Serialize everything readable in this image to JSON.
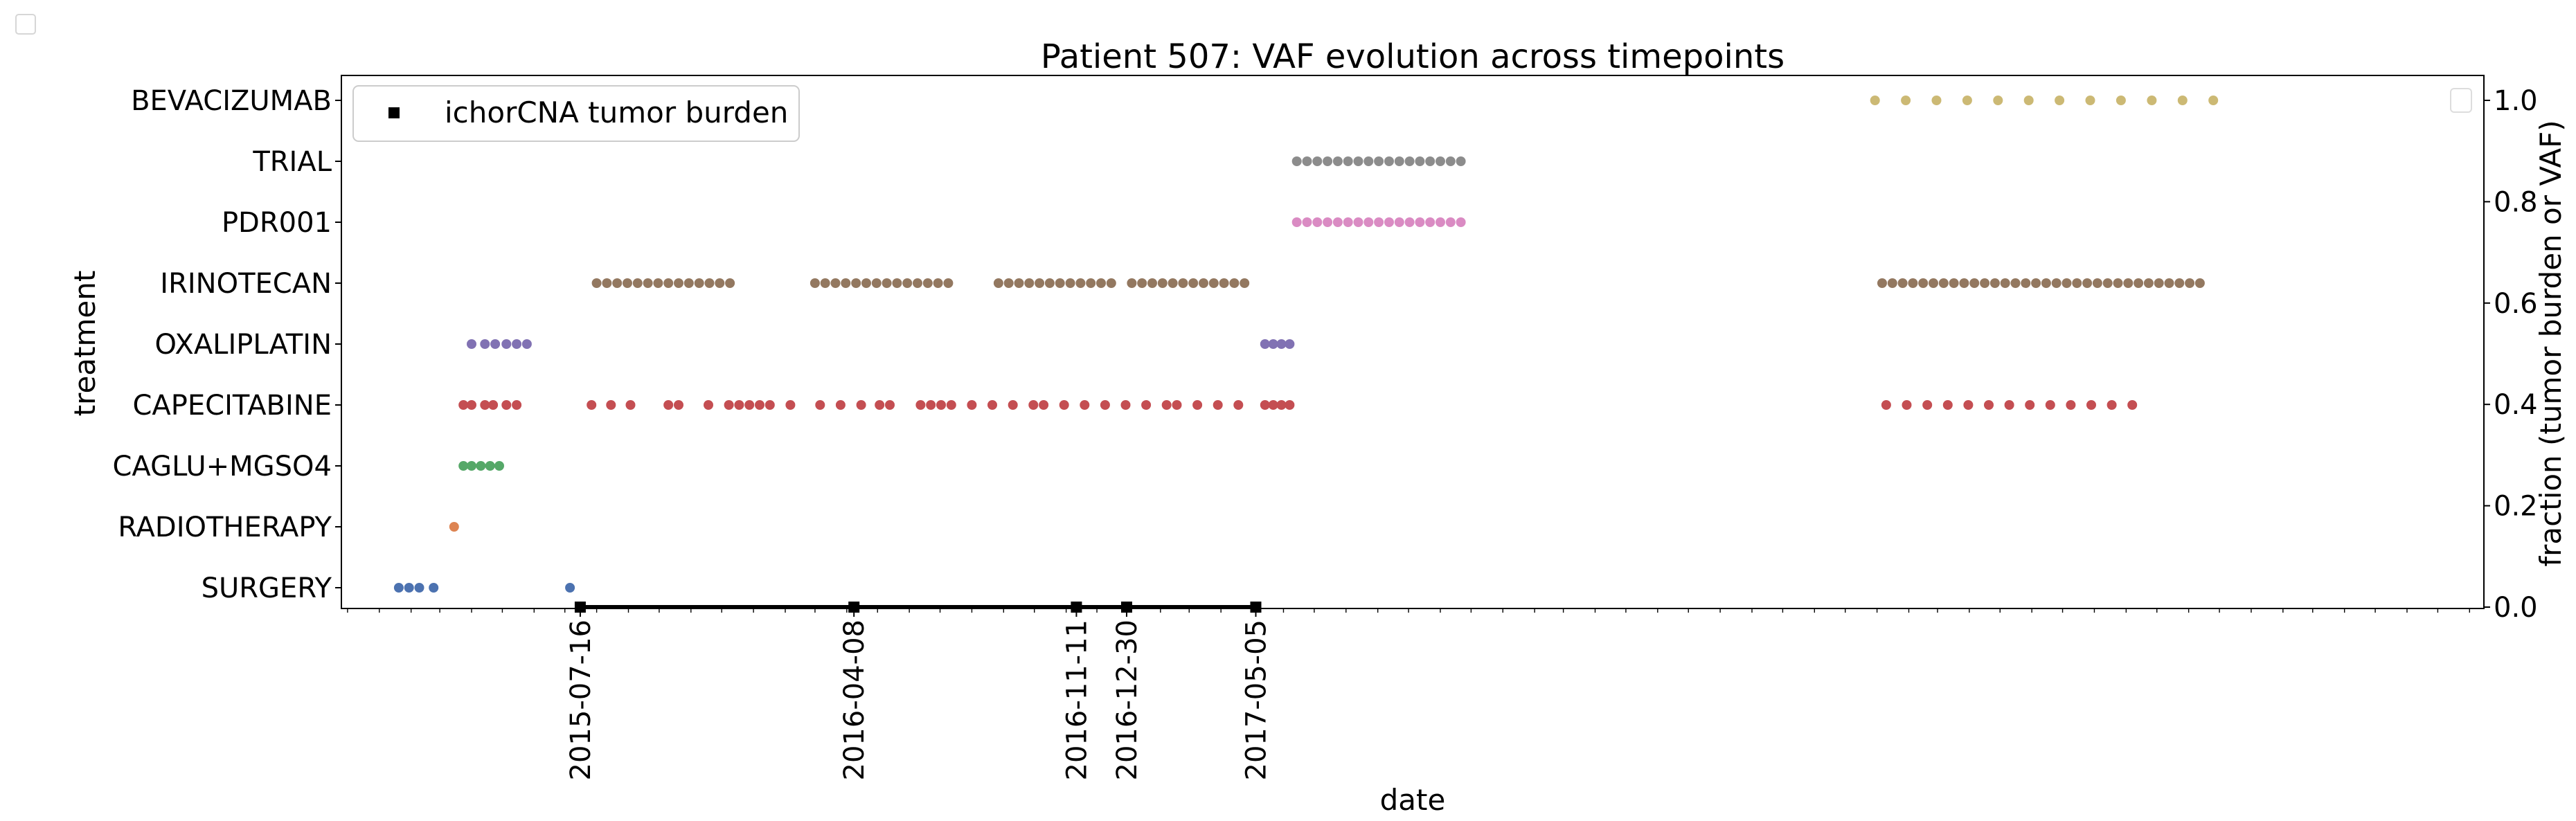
{
  "chart_data": {
    "type": "scatter",
    "title": "Patient 507: VAF evolution across timepoints",
    "xlabel": "date",
    "ylabel_left": "treatment",
    "ylabel_right": "fraction (tumor burden or VAF)",
    "right_ylim": [
      0.0,
      1.0
    ],
    "right_yticks": [
      "0.0",
      "0.2",
      "0.4",
      "0.6",
      "0.8",
      "1.0"
    ],
    "xlim": [
      "2014-11-25",
      "2020-08-15"
    ],
    "grid": false,
    "legend": {
      "position": "top-left",
      "entries": [
        "ichorCNA tumor burden"
      ]
    },
    "categories": [
      "SURGERY",
      "RADIOTHERAPY",
      "CAGLU+MGSO4",
      "CAPECITABINE",
      "OXALIPLATIN",
      "IRINOTECAN",
      "PDR001",
      "TRIAL",
      "BEVACIZUMAB"
    ],
    "colors": {
      "SURGERY": "#4c72b0",
      "RADIOTHERAPY": "#dd8452",
      "CAGLU+MGSO4": "#55a868",
      "CAPECITABINE": "#c44e52",
      "OXALIPLATIN": "#8172b3",
      "IRINOTECAN": "#937860",
      "PDR001": "#da8bc3",
      "TRIAL": "#8c8c8c",
      "BEVACIZUMAB": "#ccb974",
      "ichorCNA": "#000000"
    },
    "tumor_burden": [
      {
        "date": "2015-07-16",
        "value": 0.0
      },
      {
        "date": "2016-04-08",
        "value": 0.0
      },
      {
        "date": "2016-11-11",
        "value": 0.0
      },
      {
        "date": "2016-12-30",
        "value": 0.0
      },
      {
        "date": "2017-05-05",
        "value": 0.0
      }
    ],
    "x_tick_labels": [
      "2015-07-16",
      "2016-04-08",
      "2016-11-11",
      "2016-12-30",
      "2017-05-05"
    ],
    "treatments": [
      {
        "name": "SURGERY",
        "dates": [
          "2015-01-20",
          "2015-01-30",
          "2015-02-09",
          "2015-02-23",
          "2015-07-06"
        ]
      },
      {
        "name": "RADIOTHERAPY",
        "dates": [
          "2015-03-15"
        ]
      },
      {
        "name": "CAGLU+MGSO4",
        "dates": [
          "2015-03-24",
          "2015-04-01",
          "2015-04-10",
          "2015-04-19",
          "2015-04-28"
        ]
      },
      {
        "name": "CAPECITABINE",
        "dates": [
          "2015-03-24",
          "2015-04-01",
          "2015-04-14",
          "2015-04-22",
          "2015-05-05",
          "2015-05-15",
          "2015-07-27",
          "2015-08-15",
          "2015-09-03",
          "2015-10-10",
          "2015-10-20",
          "2015-11-18",
          "2015-12-08",
          "2015-12-18",
          "2015-12-28",
          "2016-01-07",
          "2016-01-17",
          "2016-02-06",
          "2016-03-06",
          "2016-03-26",
          "2016-04-15",
          "2016-05-03",
          "2016-05-13",
          "2016-06-12",
          "2016-06-22",
          "2016-07-02",
          "2016-07-12",
          "2016-08-01",
          "2016-08-21",
          "2016-09-10",
          "2016-09-30",
          "2016-10-10",
          "2016-10-30",
          "2016-11-19",
          "2016-12-09",
          "2016-12-29",
          "2017-01-18",
          "2017-02-07",
          "2017-02-17",
          "2017-03-09",
          "2017-03-29",
          "2017-04-18",
          "2017-05-14",
          "2017-05-22",
          "2017-05-30",
          "2017-06-07",
          "2019-01-10",
          "2019-01-30",
          "2019-02-19",
          "2019-03-11",
          "2019-03-31",
          "2019-04-20",
          "2019-05-10",
          "2019-05-30",
          "2019-06-19",
          "2019-07-09",
          "2019-07-29",
          "2019-08-18",
          "2019-09-07"
        ]
      },
      {
        "name": "OXALIPLATIN",
        "dates": [
          "2015-04-01",
          "2015-04-14",
          "2015-04-24",
          "2015-05-05",
          "2015-05-15",
          "2015-05-25"
        ]
      },
      {
        "name": "IRINOTECAN",
        "dates": [
          "2015-08-01",
          "2015-08-11",
          "2015-08-21",
          "2015-08-31",
          "2015-09-10",
          "2015-09-20",
          "2015-09-30",
          "2015-10-10",
          "2015-10-20",
          "2015-10-30",
          "2015-11-09",
          "2015-11-19",
          "2015-11-29",
          "2015-12-09",
          "2016-03-01",
          "2016-03-11",
          "2016-03-21",
          "2016-03-31",
          "2016-04-10",
          "2016-04-20",
          "2016-04-30",
          "2016-05-10",
          "2016-05-20",
          "2016-05-30",
          "2016-06-09",
          "2016-06-19",
          "2016-06-29",
          "2016-07-09",
          "2016-08-27",
          "2016-09-06",
          "2016-09-16",
          "2016-09-26",
          "2016-10-06",
          "2016-10-16",
          "2016-10-26",
          "2016-11-05",
          "2016-11-15",
          "2016-11-25",
          "2016-12-05",
          "2016-12-15",
          "2017-01-04",
          "2017-01-14",
          "2017-01-24",
          "2017-02-03",
          "2017-02-13",
          "2017-02-23",
          "2017-03-05",
          "2017-03-15",
          "2017-03-25",
          "2017-04-04",
          "2017-04-14",
          "2017-04-24",
          "2019-01-06",
          "2019-01-16",
          "2019-01-26",
          "2019-02-05",
          "2019-02-15",
          "2019-02-25",
          "2019-03-07",
          "2019-03-17",
          "2019-03-27",
          "2019-04-06",
          "2019-04-16",
          "2019-04-26",
          "2019-05-06",
          "2019-05-16",
          "2019-05-26",
          "2019-06-05",
          "2019-06-15",
          "2019-06-25",
          "2019-07-05",
          "2019-07-15",
          "2019-07-25",
          "2019-08-04",
          "2019-08-14",
          "2019-08-24",
          "2019-09-03",
          "2019-09-13",
          "2019-09-23",
          "2019-10-03",
          "2019-10-13",
          "2019-10-23",
          "2019-11-02",
          "2019-11-12"
        ]
      },
      {
        "name": "OXALIPLATIN",
        "dates": [
          "2017-05-14",
          "2017-05-22",
          "2017-05-30",
          "2017-06-07"
        ]
      },
      {
        "name": "PDR001",
        "dates": [
          "2017-06-14",
          "2017-06-24",
          "2017-07-04",
          "2017-07-14",
          "2017-07-24",
          "2017-08-03",
          "2017-08-13",
          "2017-08-23",
          "2017-09-02",
          "2017-09-12",
          "2017-09-22",
          "2017-10-02",
          "2017-10-12",
          "2017-10-22",
          "2017-11-01",
          "2017-11-11",
          "2017-11-21"
        ]
      },
      {
        "name": "TRIAL",
        "dates": [
          "2017-06-14",
          "2017-06-24",
          "2017-07-04",
          "2017-07-14",
          "2017-07-24",
          "2017-08-03",
          "2017-08-13",
          "2017-08-23",
          "2017-09-02",
          "2017-09-12",
          "2017-09-22",
          "2017-10-02",
          "2017-10-12",
          "2017-10-22",
          "2017-11-01",
          "2017-11-11",
          "2017-11-21"
        ]
      },
      {
        "name": "BEVACIZUMAB",
        "dates": [
          "2018-12-30",
          "2019-01-29",
          "2019-02-28",
          "2019-03-30",
          "2019-04-29",
          "2019-05-29",
          "2019-06-28",
          "2019-07-28",
          "2019-08-27",
          "2019-09-26",
          "2019-10-26",
          "2019-11-25"
        ]
      }
    ]
  }
}
